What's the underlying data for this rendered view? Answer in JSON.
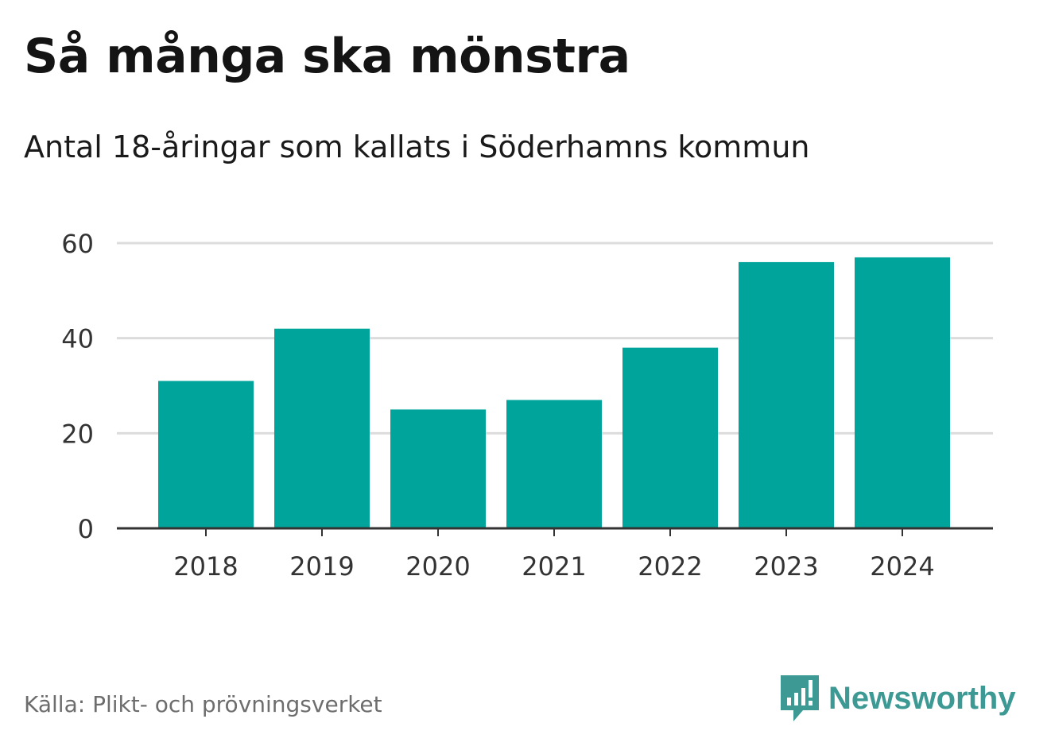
{
  "header": {
    "title": "Så många ska mönstra",
    "subtitle": "Antal 18-åringar som kallats i Söderhamns kommun"
  },
  "footer": {
    "source": "Källa: Plikt- och prövningsverket",
    "brand_name": "Newsworthy",
    "brand_icon": "newsworthy-logo-icon"
  },
  "colors": {
    "bar": "#00a49a",
    "grid": "#dcdcdc",
    "axis": "#333333",
    "brand": "#3c9994"
  },
  "chart_data": {
    "type": "bar",
    "title": "Så många ska mönstra",
    "subtitle": "Antal 18-åringar som kallats i Söderhamns kommun",
    "xlabel": "",
    "ylabel": "",
    "categories": [
      "2018",
      "2019",
      "2020",
      "2021",
      "2022",
      "2023",
      "2024"
    ],
    "values": [
      31,
      42,
      25,
      27,
      38,
      56,
      57
    ],
    "ylim": [
      0,
      60
    ],
    "yticks": [
      0,
      20,
      40,
      60
    ],
    "grid": true,
    "legend": "none"
  }
}
